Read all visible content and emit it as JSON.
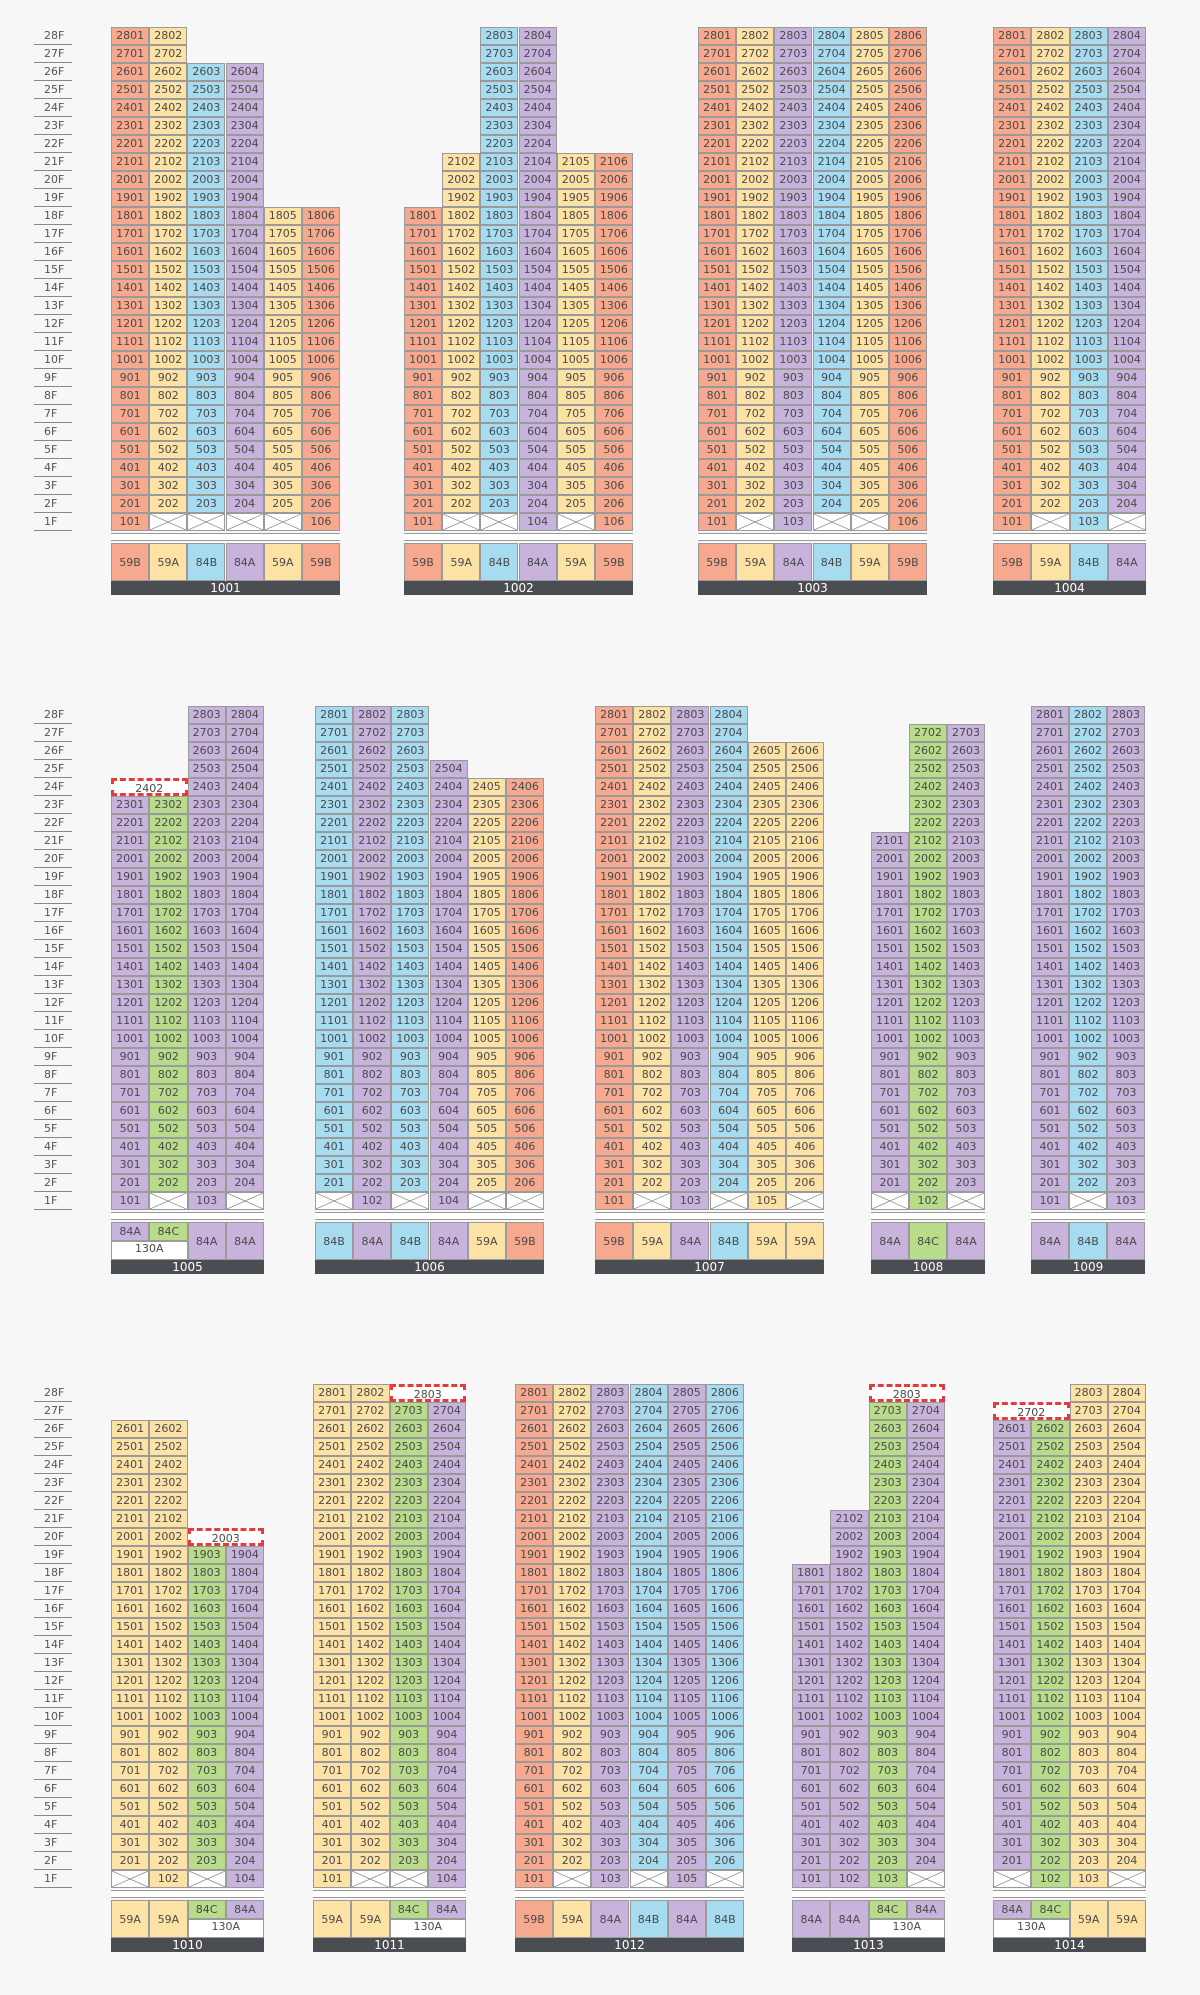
{
  "colors": {
    "59B": "#f6a98f",
    "59A": "#fde2a6",
    "84B": "#a6dbf0",
    "84A": "#c8b3dc",
    "84C": "#b8dc8a"
  },
  "floor_labels": [
    "28F",
    "27F",
    "26F",
    "25F",
    "24F",
    "23F",
    "22F",
    "21F",
    "20F",
    "19F",
    "18F",
    "17F",
    "16F",
    "15F",
    "14F",
    "13F",
    "12F",
    "11F",
    "10F",
    "9F",
    "8F",
    "7F",
    "6F",
    "5F",
    "4F",
    "3F",
    "2F",
    "1F"
  ],
  "sections": [
    {
      "top": 27
    },
    {
      "top": 706
    },
    {
      "top": 1384
    }
  ],
  "buildings": [
    {
      "name": "1001",
      "section": 0,
      "x": 111,
      "w": 229,
      "cols": [
        {
          "type": "59B",
          "top": 28,
          "one": "101"
        },
        {
          "type": "59A",
          "top": 28,
          "one": "x"
        },
        {
          "type": "84B",
          "top": 26,
          "one": "x"
        },
        {
          "type": "84A",
          "top": 26,
          "one": "x"
        },
        {
          "type": "59A",
          "top": 18,
          "one": "x"
        },
        {
          "type": "59B",
          "top": 18,
          "one": "106"
        }
      ],
      "units": [
        [
          "59B",
          "59A",
          "84B",
          "84A",
          "59A",
          "59B"
        ]
      ]
    },
    {
      "name": "1002",
      "section": 0,
      "x": 404,
      "w": 229,
      "cols": [
        {
          "type": "59B",
          "top": 18,
          "one": "101"
        },
        {
          "type": "59A",
          "top": 21,
          "one": "x"
        },
        {
          "type": "84B",
          "top": 28,
          "one": "x"
        },
        {
          "type": "84A",
          "top": 28,
          "one": "104"
        },
        {
          "type": "59A",
          "top": 21,
          "one": "x"
        },
        {
          "type": "59B",
          "top": 21,
          "one": "106"
        }
      ],
      "units": [
        [
          "59B",
          "59A",
          "84B",
          "84A",
          "59A",
          "59B"
        ]
      ]
    },
    {
      "name": "1003",
      "section": 0,
      "x": 698,
      "w": 229,
      "cols": [
        {
          "type": "59B",
          "top": 28,
          "one": "101"
        },
        {
          "type": "59A",
          "top": 28,
          "one": "x"
        },
        {
          "type": "84A",
          "top": 28,
          "one": "103"
        },
        {
          "type": "84B",
          "top": 28,
          "one": "x"
        },
        {
          "type": "59A",
          "top": 28,
          "one": "x"
        },
        {
          "type": "59B",
          "top": 28,
          "one": "106"
        }
      ],
      "units": [
        [
          "59B",
          "59A",
          "84A",
          "84B",
          "59A",
          "59B"
        ]
      ]
    },
    {
      "name": "1004",
      "section": 0,
      "x": 993,
      "w": 153,
      "cols": [
        {
          "type": "59B",
          "top": 28,
          "one": "101"
        },
        {
          "type": "59A",
          "top": 28,
          "one": "x"
        },
        {
          "type": "84B",
          "top": 28,
          "one": "103"
        },
        {
          "type": "84A",
          "top": 28,
          "one": "x"
        }
      ],
      "units": [
        [
          "59B",
          "59A",
          "84B",
          "84A"
        ]
      ]
    },
    {
      "name": "1005",
      "section": 1,
      "x": 111,
      "w": 153,
      "cols": [
        {
          "type": "84A",
          "top": 23,
          "one": "101"
        },
        {
          "type": "84C",
          "top": 23,
          "one": "x"
        },
        {
          "type": "84A",
          "top": 28,
          "one": "103"
        },
        {
          "type": "84A",
          "top": 28,
          "one": "x"
        }
      ],
      "dash": [
        {
          "col": 0,
          "span": 2,
          "floor": 24,
          "label": "2402"
        }
      ],
      "units": [
        [
          "84A",
          "84C",
          "84A",
          "84A"
        ]
      ],
      "unit_sub": [
        {
          "col": 0,
          "span": 2,
          "label": "130A"
        }
      ]
    },
    {
      "name": "1006",
      "section": 1,
      "x": 315,
      "w": 229,
      "cols": [
        {
          "type": "84B",
          "top": 28,
          "one": "x"
        },
        {
          "type": "84A",
          "top": 28,
          "one": "102"
        },
        {
          "type": "84B",
          "top": 28,
          "one": "x"
        },
        {
          "type": "84A",
          "top": 25,
          "one": "104"
        },
        {
          "type": "59A",
          "top": 24,
          "one": "x"
        },
        {
          "type": "59B",
          "top": 24,
          "one": "x"
        }
      ],
      "units": [
        [
          "84B",
          "84A",
          "84B",
          "84A",
          "59A",
          "59B"
        ]
      ]
    },
    {
      "name": "1007",
      "section": 1,
      "x": 595,
      "w": 229,
      "cols": [
        {
          "type": "59B",
          "top": 28,
          "one": "101"
        },
        {
          "type": "59A",
          "top": 28,
          "one": "x"
        },
        {
          "type": "84A",
          "top": 28,
          "one": "103"
        },
        {
          "type": "84B",
          "top": 28,
          "one": "x"
        },
        {
          "type": "59A",
          "top": 26,
          "one": "105"
        },
        {
          "type": "59A",
          "top": 26,
          "one": "x"
        }
      ],
      "units": [
        [
          "59B",
          "59A",
          "84A",
          "84B",
          "59A",
          "59A"
        ]
      ]
    },
    {
      "name": "1008",
      "section": 1,
      "x": 871,
      "w": 114,
      "cols": [
        {
          "type": "84A",
          "top": 21,
          "one": "x"
        },
        {
          "type": "84C",
          "top": 27,
          "one": "102"
        },
        {
          "type": "84A",
          "top": 27,
          "one": "x"
        }
      ],
      "units": [
        [
          "84A",
          "84C",
          "84A"
        ]
      ]
    },
    {
      "name": "1009",
      "section": 1,
      "x": 1031,
      "w": 114,
      "cols": [
        {
          "type": "84A",
          "top": 28,
          "one": "101"
        },
        {
          "type": "84B",
          "top": 28,
          "one": "x"
        },
        {
          "type": "84A",
          "top": 28,
          "one": "103"
        }
      ],
      "units": [
        [
          "84A",
          "84B",
          "84A"
        ]
      ]
    },
    {
      "name": "1010",
      "section": 2,
      "x": 111,
      "w": 153,
      "cols": [
        {
          "type": "59A",
          "top": 26,
          "one": "x"
        },
        {
          "type": "59A",
          "top": 26,
          "one": "102"
        },
        {
          "type": "84C",
          "top": 19,
          "one": "x"
        },
        {
          "type": "84A",
          "top": 19,
          "one": "104"
        }
      ],
      "dash": [
        {
          "col": 2,
          "span": 2,
          "floor": 20,
          "label": "2003"
        }
      ],
      "units": [
        [
          "59A",
          "59A",
          "84C",
          "84A"
        ]
      ],
      "unit_sub": [
        {
          "col": 2,
          "span": 2,
          "label": "130A"
        }
      ]
    },
    {
      "name": "1011",
      "section": 2,
      "x": 313,
      "w": 153,
      "cols": [
        {
          "type": "59A",
          "top": 28,
          "one": "101"
        },
        {
          "type": "59A",
          "top": 28,
          "one": "x"
        },
        {
          "type": "84C",
          "top": 27,
          "one": "x"
        },
        {
          "type": "84A",
          "top": 27,
          "one": "104"
        }
      ],
      "dash": [
        {
          "col": 2,
          "span": 2,
          "floor": 28,
          "label": "2803"
        }
      ],
      "units": [
        [
          "59A",
          "59A",
          "84C",
          "84A"
        ]
      ],
      "unit_sub": [
        {
          "col": 2,
          "span": 2,
          "label": "130A"
        }
      ]
    },
    {
      "name": "1012",
      "section": 2,
      "x": 515,
      "w": 229,
      "cols": [
        {
          "type": "59B",
          "top": 28,
          "one": "101"
        },
        {
          "type": "59A",
          "top": 28,
          "one": "x"
        },
        {
          "type": "84A",
          "top": 28,
          "one": "103"
        },
        {
          "type": "84B",
          "top": 28,
          "one": "x"
        },
        {
          "type": "84A",
          "top": 28,
          "one": "105"
        },
        {
          "type": "84B",
          "top": 28,
          "one": "x"
        }
      ],
      "units": [
        [
          "59B",
          "59A",
          "84A",
          "84B",
          "84A",
          "84B"
        ]
      ]
    },
    {
      "name": "1013",
      "section": 2,
      "x": 792,
      "w": 153,
      "cols": [
        {
          "type": "84A",
          "top": 18,
          "one": "101"
        },
        {
          "type": "84A",
          "top": 21,
          "one": "102"
        },
        {
          "type": "84C",
          "top": 27,
          "one": "103"
        },
        {
          "type": "84A",
          "top": 27,
          "one": "x"
        }
      ],
      "dash": [
        {
          "col": 2,
          "span": 2,
          "floor": 28,
          "label": "2803"
        }
      ],
      "units": [
        [
          "84A",
          "84A",
          "84C",
          "84A"
        ]
      ],
      "unit_sub": [
        {
          "col": 2,
          "span": 2,
          "label": "130A"
        }
      ]
    },
    {
      "name": "1014",
      "section": 2,
      "x": 993,
      "w": 153,
      "cols": [
        {
          "type": "84A",
          "top": 26,
          "one": "x"
        },
        {
          "type": "84C",
          "top": 26,
          "one": "102"
        },
        {
          "type": "59A",
          "top": 28,
          "one": "103"
        },
        {
          "type": "59A",
          "top": 28,
          "one": "x"
        }
      ],
      "dash": [
        {
          "col": 0,
          "span": 2,
          "floor": 27,
          "label": "2702"
        }
      ],
      "units": [
        [
          "84A",
          "84C",
          "59A",
          "59A"
        ]
      ],
      "unit_sub": [
        {
          "col": 0,
          "span": 2,
          "label": "130A"
        }
      ]
    }
  ]
}
